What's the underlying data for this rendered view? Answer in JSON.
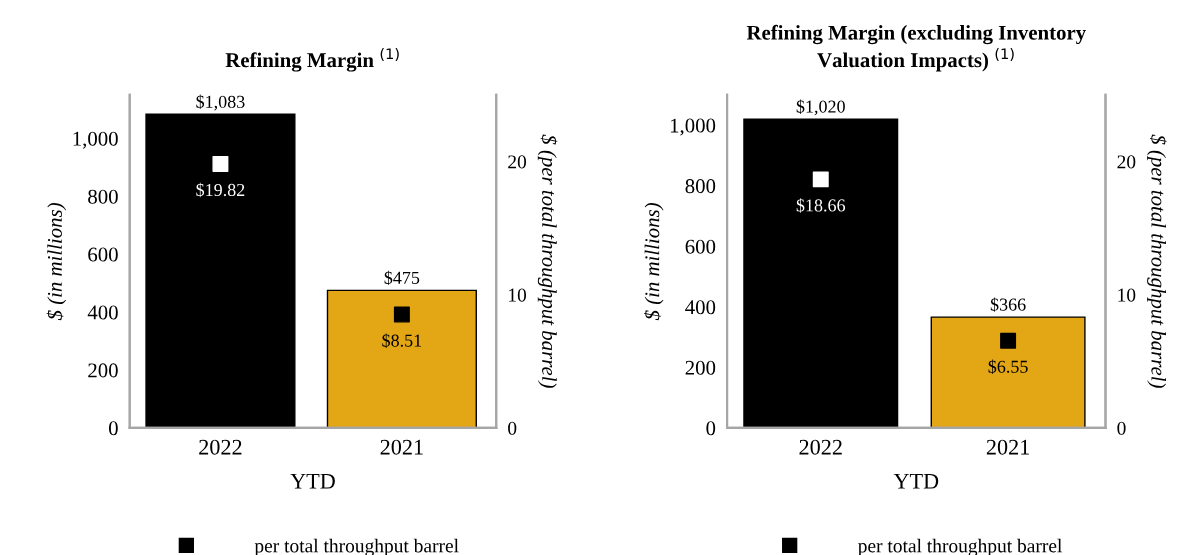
{
  "chart_data": [
    {
      "type": "bar",
      "title": "Refining Margin $^{(1)}$",
      "xlabel": "YTD",
      "ylabel": "$ (in millions)",
      "y2label": "$ (per total throughput barrel)",
      "categories": [
        "2022",
        "2021"
      ],
      "ylim": [
        0,
        1150
      ],
      "yticks": [
        0,
        200,
        400,
        600,
        800,
        {
          "value": 1000,
          "label": "1,000"
        }
      ],
      "y2lim": [
        0,
        25
      ],
      "y2ticks": [
        0,
        10,
        20
      ],
      "grid": false,
      "legend": "bottom",
      "series": [
        {
          "colors": [
            "#000000",
            "#e3a614"
          ],
          "values": [
            1083,
            475
          ],
          "value_labels": [
            "$1,083",
            "$475"
          ]
        },
        {
          "type": "scatter",
          "name": "per total throughput barrel",
          "axis": "y2",
          "marker": "square",
          "color": "#000000",
          "colors": [
            "#ffffff",
            "#000000"
          ],
          "values": [
            19.82,
            8.51
          ],
          "value_labels": [
            "$19.82",
            "$8.51"
          ]
        }
      ]
    },
    {
      "type": "bar",
      "title": "Refining Margin (excluding Inventory\nValuation Impacts) $^{(1)}$",
      "xlabel": "YTD",
      "ylabel": "$ (in millions)",
      "y2label": "$ (per total throughput barrel)",
      "categories": [
        "2022",
        "2021"
      ],
      "ylim": [
        0,
        1100
      ],
      "yticks": [
        0,
        200,
        400,
        600,
        800,
        {
          "value": 1000,
          "label": "1,000"
        }
      ],
      "y2lim": [
        0,
        25
      ],
      "y2ticks": [
        0,
        10,
        20
      ],
      "grid": false,
      "legend": "bottom",
      "series": [
        {
          "colors": [
            "#000000",
            "#e3a614"
          ],
          "values": [
            1020,
            366
          ],
          "value_labels": [
            "$1,020",
            "$366"
          ]
        },
        {
          "type": "scatter",
          "name": "per total throughput barrel",
          "axis": "y2",
          "marker": "square",
          "color": "#000000",
          "colors": [
            "#ffffff",
            "#000000"
          ],
          "values": [
            18.66,
            6.55
          ],
          "value_labels": [
            "$18.66",
            "$6.55"
          ]
        }
      ]
    }
  ]
}
